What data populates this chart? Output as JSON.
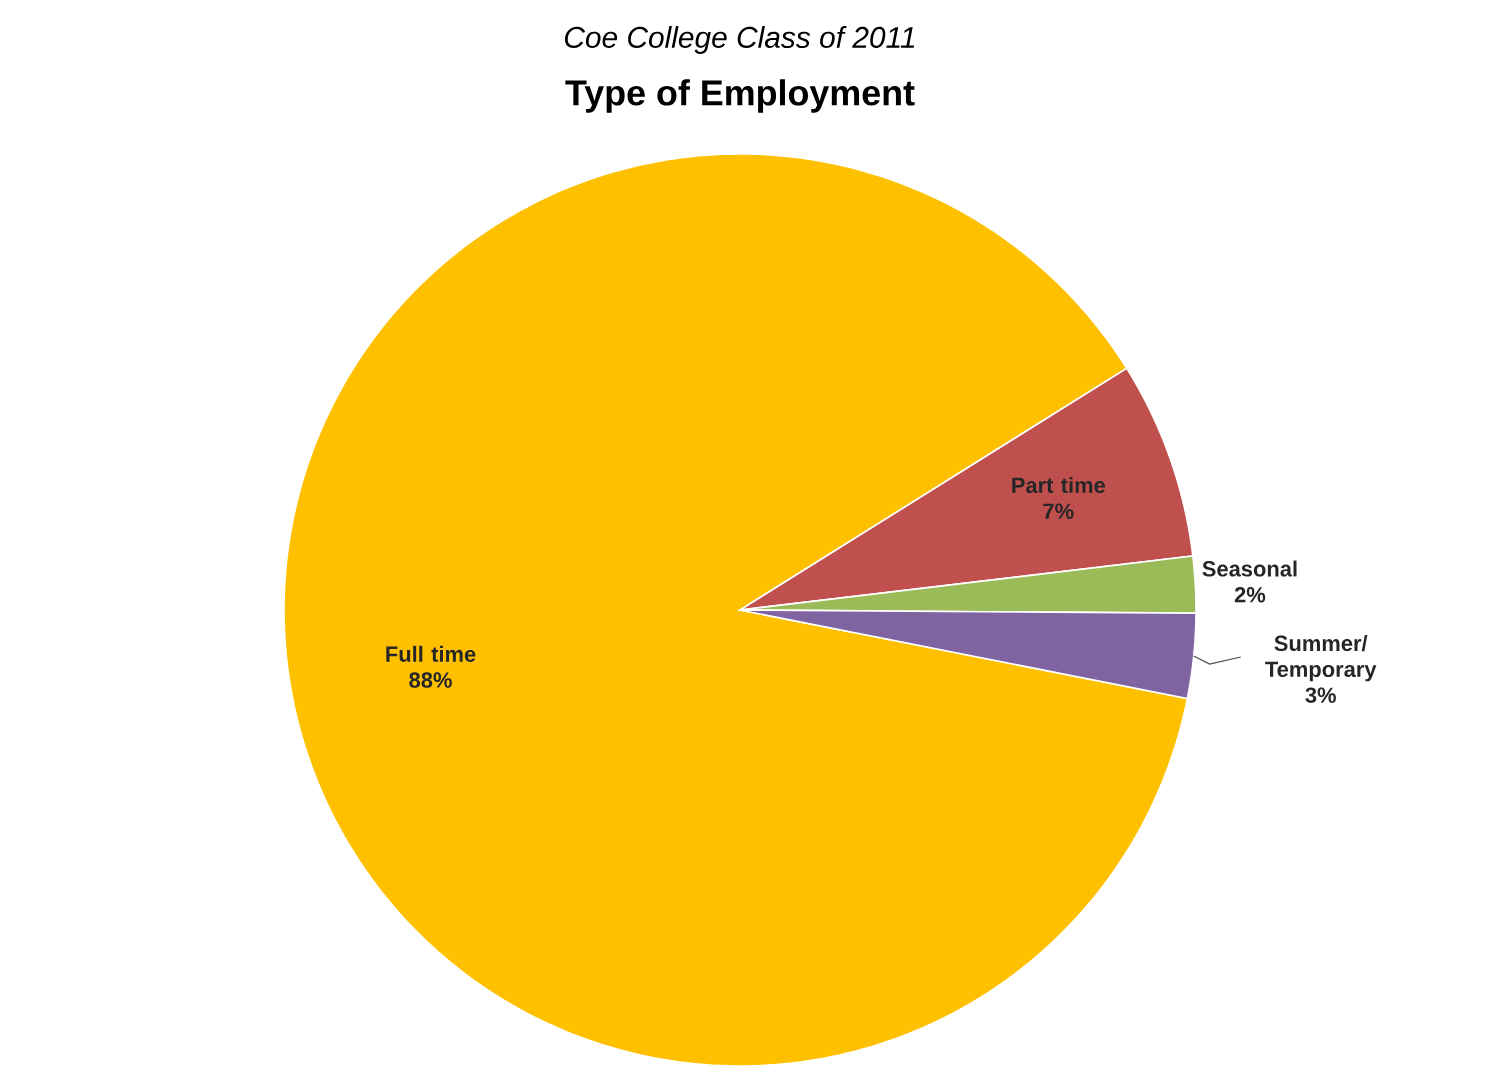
{
  "chart_data": {
    "type": "pie",
    "subtitle": "Coe College Class of 2011",
    "title": "Type of Employment",
    "categories": [
      "Full time",
      "Part time",
      "Seasonal",
      "Summer/ Temporary"
    ],
    "values": [
      88,
      7,
      2,
      3
    ],
    "value_labels": [
      "88%",
      "7%",
      "2%",
      "3%"
    ],
    "colors": [
      "#ffc000",
      "#c0504d",
      "#9bbb59",
      "#8064a2"
    ]
  }
}
